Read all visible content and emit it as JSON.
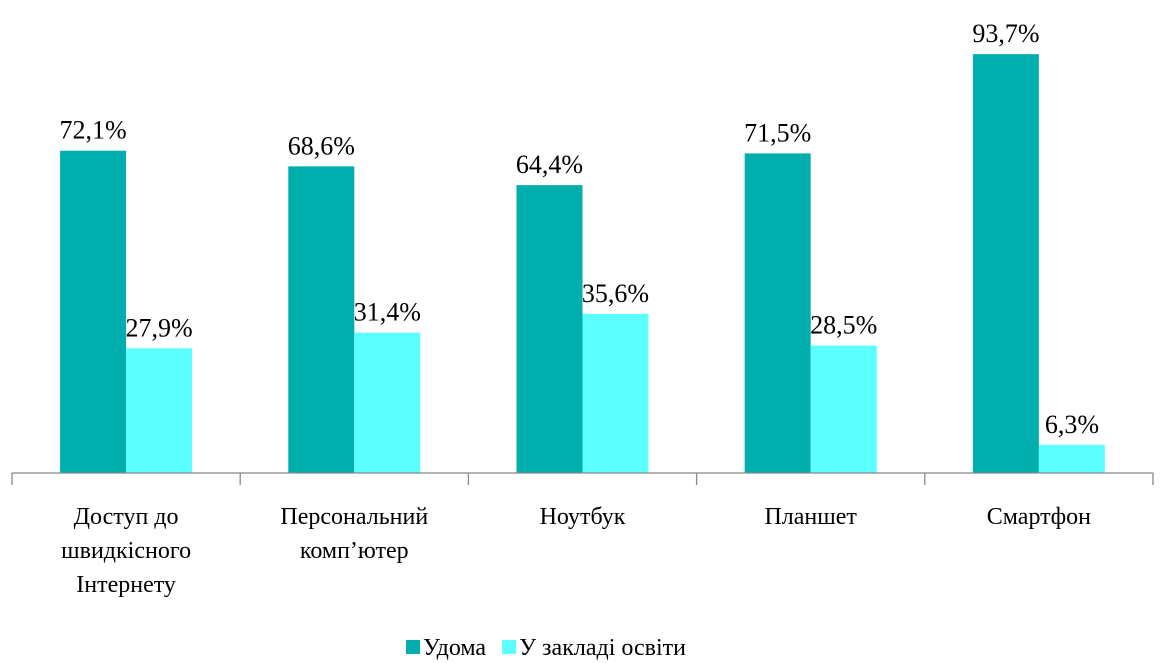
{
  "chart_data": {
    "type": "bar",
    "categories": [
      "Доступ до швидкісного Інтернету",
      "Персональний комп’ютер",
      "Ноутбук",
      "Планшет",
      "Смартфон"
    ],
    "series": [
      {
        "name": "Удома",
        "color": "#00aeae",
        "values": [
          72.1,
          68.6,
          64.4,
          71.5,
          93.7
        ],
        "value_labels": [
          "72,1%",
          "68,6%",
          "64,4%",
          "71,5%",
          "93,7%"
        ]
      },
      {
        "name": "У закладі освіти",
        "color": "#5cffff",
        "values": [
          27.9,
          31.4,
          35.6,
          28.5,
          6.3
        ],
        "value_labels": [
          "27,9%",
          "31,4%",
          "35,6%",
          "28,5%",
          "6,3%"
        ]
      }
    ],
    "ylim": [
      0,
      100
    ],
    "grid": false,
    "legend": "bottom"
  }
}
